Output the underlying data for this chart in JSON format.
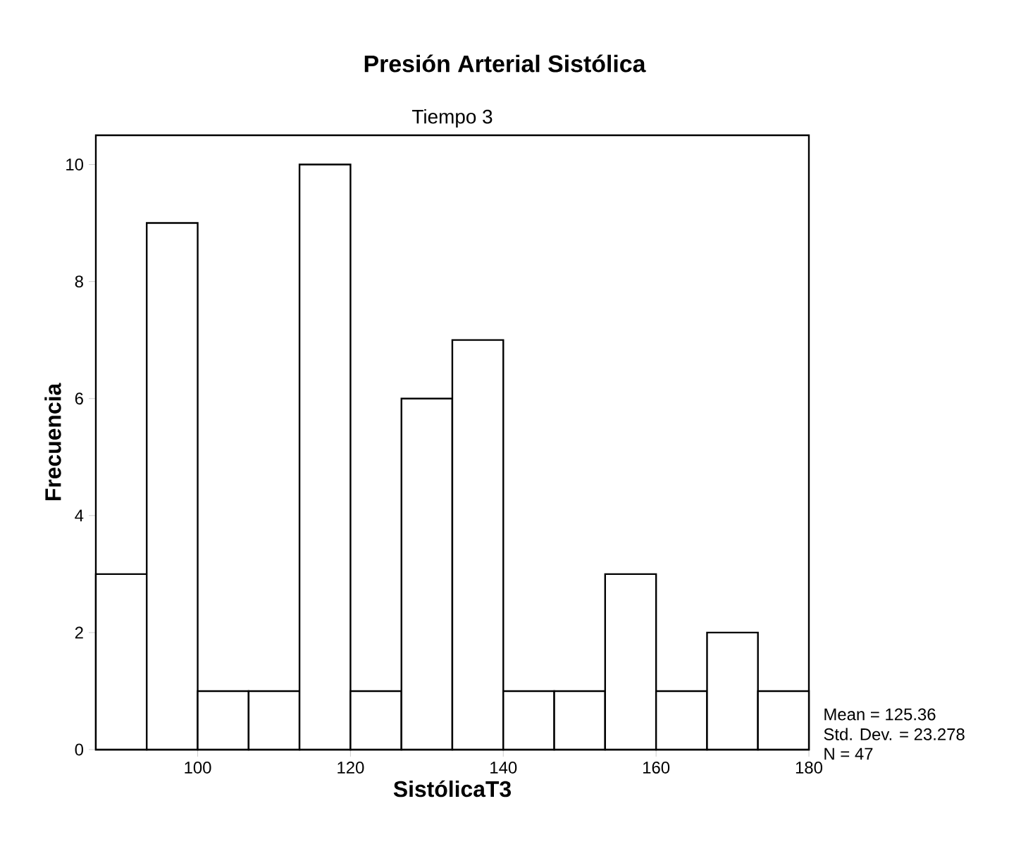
{
  "chart_data": {
    "type": "histogram",
    "title": "Presión Arterial Sistólica",
    "subtitle": "Tiempo 3",
    "xlabel": "SistólicaT3",
    "ylabel": "Frecuencia",
    "bins": [
      86.67,
      93.33,
      100,
      106.67,
      113.33,
      120,
      126.67,
      133.33,
      140,
      146.67,
      153.33,
      160,
      166.67,
      173.33,
      180
    ],
    "values": [
      3,
      9,
      1,
      1,
      10,
      1,
      6,
      7,
      1,
      1,
      3,
      1,
      2,
      1
    ],
    "color": "#ffffff",
    "xlim": [
      86.67,
      180
    ],
    "ylim": [
      0,
      10.5
    ],
    "xticks": [
      100,
      120,
      140,
      160,
      180
    ],
    "yticks": [
      0,
      2,
      4,
      6,
      8,
      10
    ],
    "annotations": [
      "Mean = 125.36",
      "Std. Dev. = 23.278",
      "N = 47"
    ]
  }
}
